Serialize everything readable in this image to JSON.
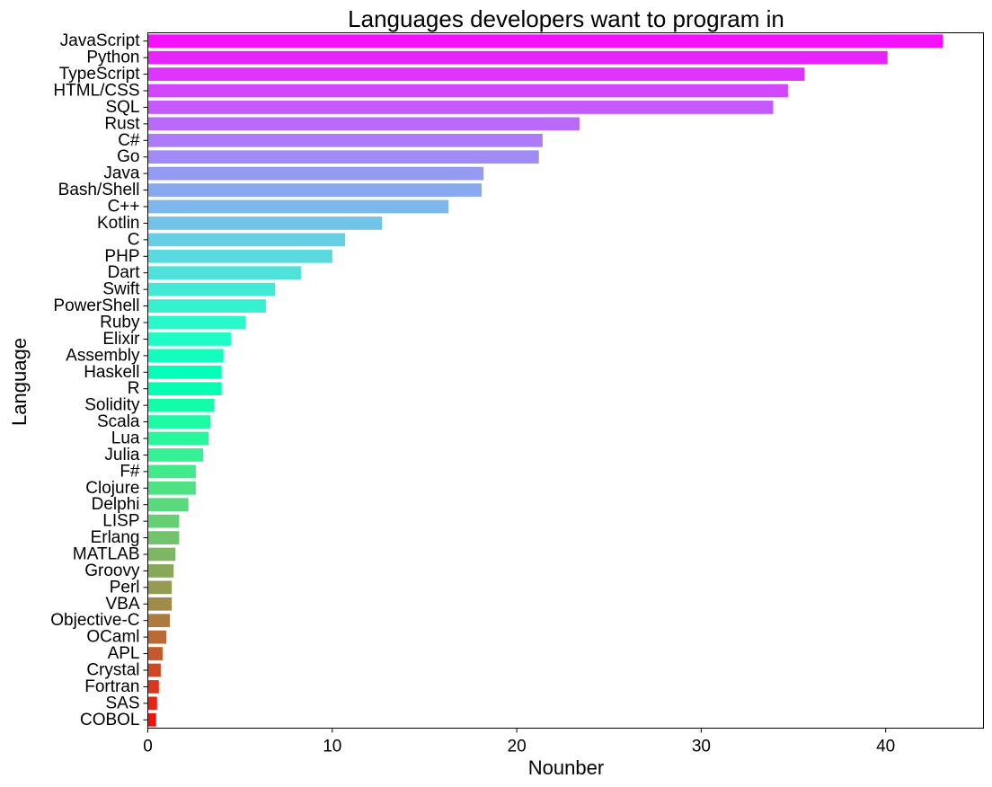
{
  "chart_data": {
    "type": "bar",
    "orientation": "horizontal",
    "title": "Languages developers want to program in",
    "xlabel": "Nounber",
    "ylabel": "Language",
    "xlim": [
      0,
      45.3
    ],
    "xticks": [
      0,
      10,
      20,
      30,
      40
    ],
    "grid": false,
    "legend": "none",
    "palette": "rainbow",
    "categories": [
      "JavaScript",
      "Python",
      "TypeScript",
      "HTML/CSS",
      "SQL",
      "Rust",
      "C#",
      "Go",
      "Java",
      "Bash/Shell",
      "C++",
      "Kotlin",
      "C",
      "PHP",
      "Dart",
      "Swift",
      "PowerShell",
      "Ruby",
      "Elixir",
      "Assembly",
      "Haskell",
      "R",
      "Solidity",
      "Scala",
      "Lua",
      "Julia",
      "F#",
      "Clojure",
      "Delphi",
      "LISP",
      "Erlang",
      "MATLAB",
      "Groovy",
      "Perl",
      "VBA",
      "Objective-C",
      "OCaml",
      "APL",
      "Crystal",
      "Fortran",
      "SAS",
      "COBOL"
    ],
    "values": [
      43.1,
      40.1,
      35.6,
      34.7,
      33.9,
      23.4,
      21.4,
      21.2,
      18.2,
      18.1,
      16.3,
      12.7,
      10.7,
      10.0,
      8.3,
      6.9,
      6.4,
      5.3,
      4.5,
      4.1,
      4.0,
      4.0,
      3.6,
      3.4,
      3.3,
      3.0,
      2.6,
      2.6,
      2.2,
      1.7,
      1.7,
      1.5,
      1.4,
      1.3,
      1.3,
      1.2,
      1.0,
      0.8,
      0.7,
      0.6,
      0.5,
      0.45
    ]
  }
}
